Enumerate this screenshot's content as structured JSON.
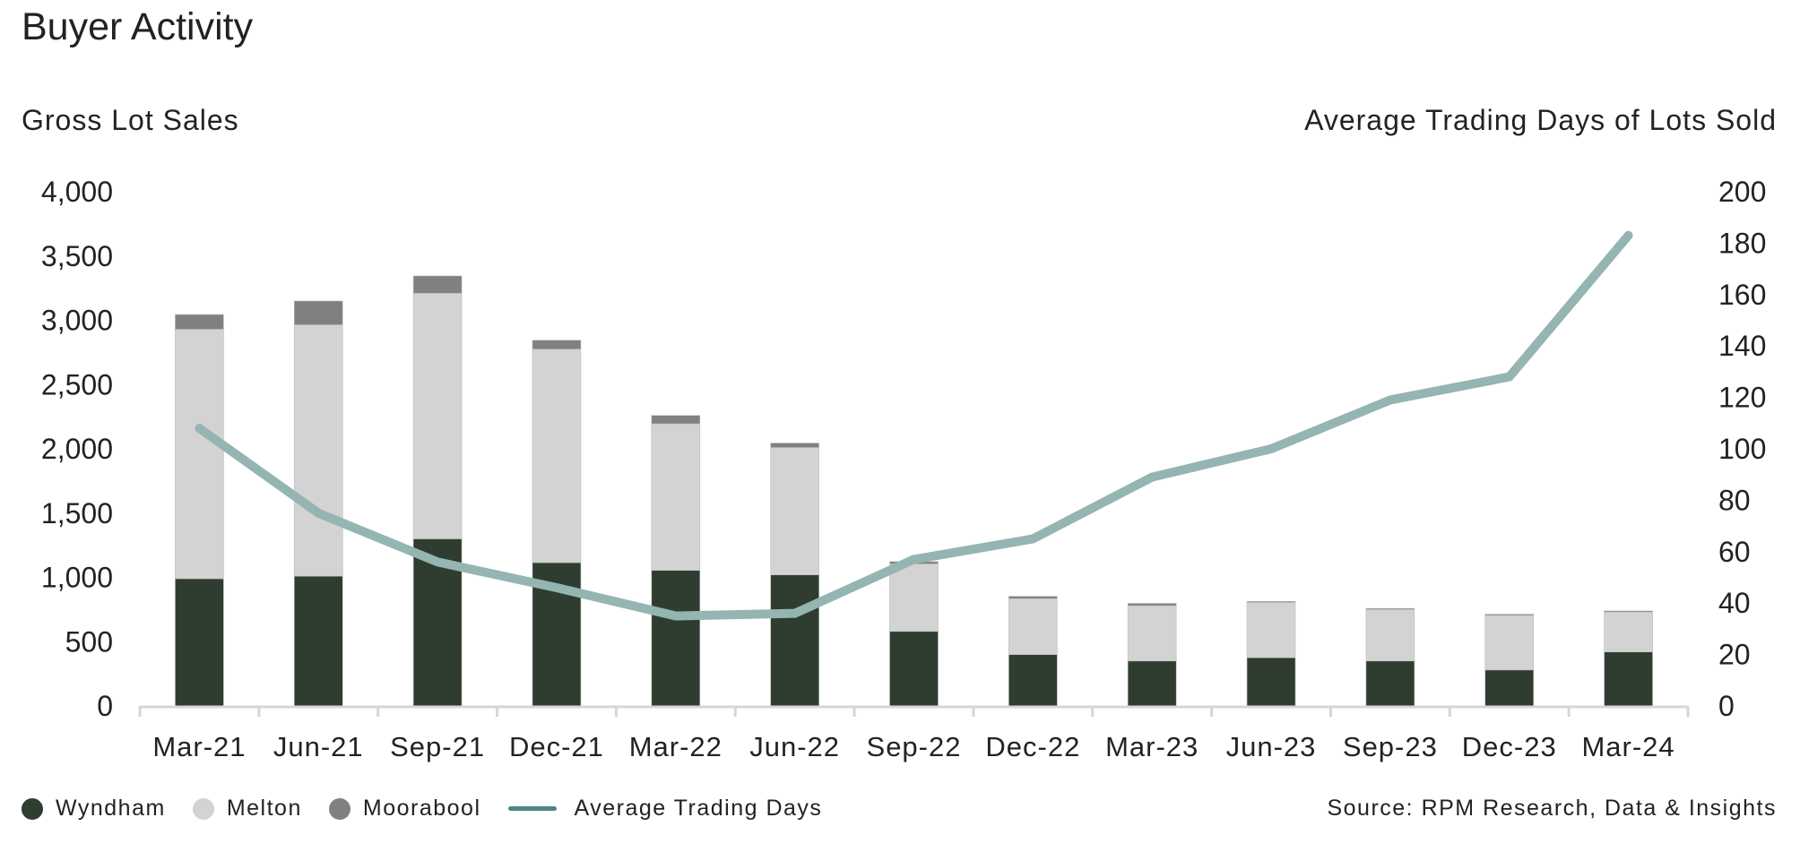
{
  "chart_data": {
    "type": "bar",
    "stacked": true,
    "title": "Buyer Activity",
    "ylabel": "Gross Lot Sales",
    "y2label": "Average Trading Days of Lots Sold",
    "ylim": [
      0,
      4000
    ],
    "y2lim": [
      0,
      200
    ],
    "yticks": [
      "0",
      "500",
      "1,000",
      "1,500",
      "2,000",
      "2,500",
      "3,000",
      "3,500",
      "4,000"
    ],
    "y2ticks": [
      "0",
      "20",
      "40",
      "60",
      "80",
      "100",
      "120",
      "140",
      "160",
      "180",
      "200"
    ],
    "categories": [
      "Mar-21",
      "Jun-21",
      "Sep-21",
      "Dec-21",
      "Mar-22",
      "Jun-22",
      "Sep-22",
      "Dec-22",
      "Mar-23",
      "Jun-23",
      "Sep-23",
      "Dec-23",
      "Mar-24"
    ],
    "series": [
      {
        "name": "Wyndham",
        "color": "#2e3d2f",
        "values": [
          990,
          1010,
          1300,
          1115,
          1055,
          1020,
          580,
          400,
          350,
          375,
          350,
          280,
          420
        ]
      },
      {
        "name": "Melton",
        "color": "#d2d3d2",
        "values": [
          1940,
          1955,
          1910,
          1660,
          1140,
          990,
          525,
          435,
          430,
          430,
          400,
          425,
          310
        ]
      },
      {
        "name": "Moorabool",
        "color": "#808080",
        "values": [
          115,
          185,
          135,
          70,
          65,
          35,
          18,
          18,
          18,
          8,
          9,
          9,
          9
        ]
      }
    ],
    "line_series": {
      "name": "Average Trading Days",
      "axis": "right",
      "color": "#94b5b2",
      "values": [
        108,
        75,
        56,
        46,
        35,
        36,
        57,
        65,
        89,
        100,
        119,
        128,
        183
      ]
    },
    "legend": "bottom-left",
    "legend_line_color": "#4e8583",
    "source": "Source: RPM Research, Data & Insights"
  }
}
